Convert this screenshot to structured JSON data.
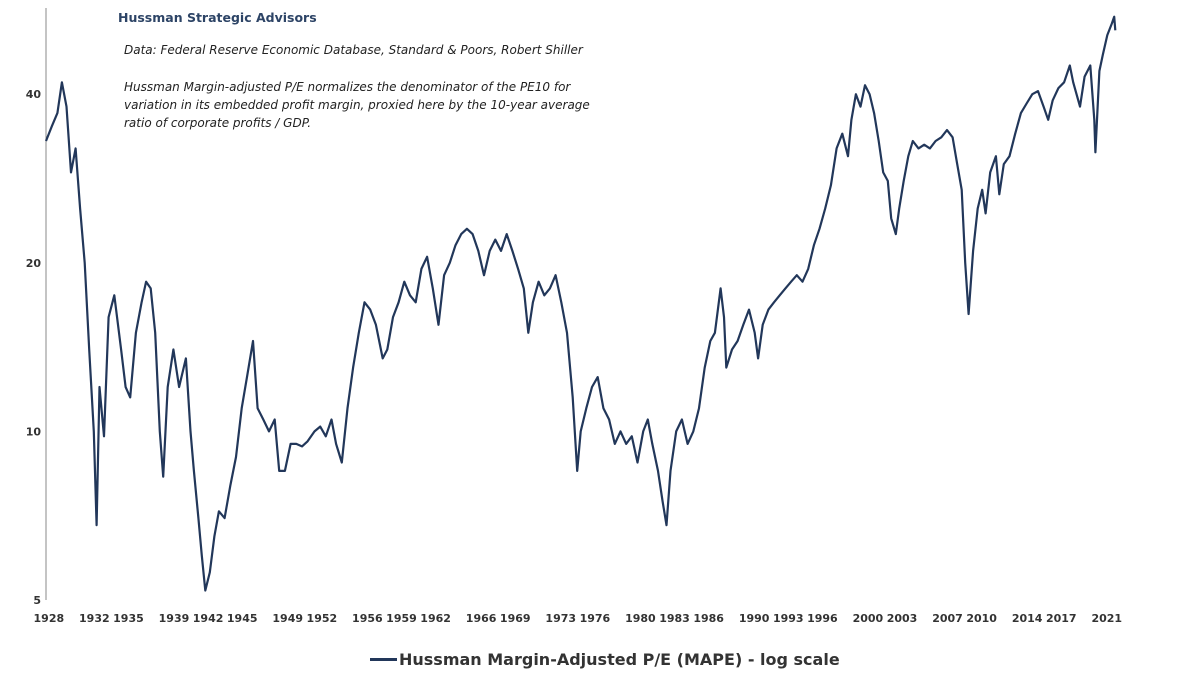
{
  "header": {
    "brand": "Hussman Strategic Advisors",
    "source_note": "Data: Federal Reserve Economic Database, Standard & Poors, Robert Shiller",
    "description": "Hussman Margin-adjusted P/E normalizes the denominator of the PE10 for variation in its embedded profit margin, proxied here by the 10-year average ratio of corporate profits / GDP."
  },
  "chart_data": {
    "type": "line",
    "title": "",
    "xlabel": "",
    "ylabel": "",
    "y_scale": "log",
    "ylim": [
      5,
      57
    ],
    "xlim": [
      1928,
      2022.5
    ],
    "grid": false,
    "legend_position": "bottom-center",
    "y_ticks": [
      5,
      10,
      20,
      40
    ],
    "x_ticks": [
      "1928",
      "1932",
      "1935",
      "1939",
      "1942",
      "1945",
      "1949",
      "1952",
      "1956",
      "1959",
      "1962",
      "1966",
      "1969",
      "1973",
      "1976",
      "1980",
      "1983",
      "1986",
      "1990",
      "1993",
      "1996",
      "2000",
      "2003",
      "2007",
      "2010",
      "2014",
      "2017",
      "2021"
    ],
    "series": [
      {
        "name": "Hussman Margin-Adjusted P/E (MAPE) - log scale",
        "color": "#22375a",
        "points": [
          [
            1928.0,
            33
          ],
          [
            1928.5,
            35
          ],
          [
            1929.0,
            37
          ],
          [
            1929.4,
            42
          ],
          [
            1929.8,
            38
          ],
          [
            1930.2,
            29
          ],
          [
            1930.6,
            32
          ],
          [
            1931.0,
            25
          ],
          [
            1931.4,
            20
          ],
          [
            1931.8,
            14
          ],
          [
            1932.2,
            10
          ],
          [
            1932.45,
            6.8
          ],
          [
            1932.7,
            12
          ],
          [
            1933.1,
            9.8
          ],
          [
            1933.5,
            16
          ],
          [
            1934.0,
            17.5
          ],
          [
            1934.6,
            14
          ],
          [
            1935.0,
            12
          ],
          [
            1935.4,
            11.5
          ],
          [
            1935.9,
            15
          ],
          [
            1936.4,
            17
          ],
          [
            1936.8,
            18.5
          ],
          [
            1937.2,
            18
          ],
          [
            1937.6,
            15
          ],
          [
            1938.0,
            10
          ],
          [
            1938.3,
            8.3
          ],
          [
            1938.7,
            12
          ],
          [
            1939.2,
            14
          ],
          [
            1939.7,
            12
          ],
          [
            1940.3,
            13.5
          ],
          [
            1940.7,
            10
          ],
          [
            1941.0,
            8.5
          ],
          [
            1941.4,
            7
          ],
          [
            1941.7,
            6
          ],
          [
            1942.0,
            5.2
          ],
          [
            1942.4,
            5.6
          ],
          [
            1942.8,
            6.5
          ],
          [
            1943.2,
            7.2
          ],
          [
            1943.7,
            7
          ],
          [
            1944.2,
            8
          ],
          [
            1944.7,
            9
          ],
          [
            1945.2,
            11
          ],
          [
            1945.7,
            12.6
          ],
          [
            1946.2,
            14.5
          ],
          [
            1946.6,
            11
          ],
          [
            1947.1,
            10.5
          ],
          [
            1947.6,
            10
          ],
          [
            1948.1,
            10.5
          ],
          [
            1948.5,
            8.5
          ],
          [
            1949.0,
            8.5
          ],
          [
            1949.5,
            9.5
          ],
          [
            1950.0,
            9.5
          ],
          [
            1950.5,
            9.4
          ],
          [
            1951.0,
            9.6
          ],
          [
            1951.6,
            10
          ],
          [
            1952.1,
            10.2
          ],
          [
            1952.6,
            9.8
          ],
          [
            1953.1,
            10.5
          ],
          [
            1953.5,
            9.5
          ],
          [
            1954.0,
            8.8
          ],
          [
            1954.5,
            11
          ],
          [
            1955.0,
            13
          ],
          [
            1955.5,
            15
          ],
          [
            1956.0,
            17
          ],
          [
            1956.5,
            16.5
          ],
          [
            1957.0,
            15.5
          ],
          [
            1957.6,
            13.5
          ],
          [
            1958.0,
            14
          ],
          [
            1958.5,
            16
          ],
          [
            1959.0,
            17
          ],
          [
            1959.5,
            18.5
          ],
          [
            1960.0,
            17.5
          ],
          [
            1960.5,
            17
          ],
          [
            1961.0,
            19.5
          ],
          [
            1961.5,
            20.5
          ],
          [
            1962.0,
            18
          ],
          [
            1962.5,
            15.5
          ],
          [
            1963.0,
            19
          ],
          [
            1963.5,
            20
          ],
          [
            1964.0,
            21.5
          ],
          [
            1964.5,
            22.5
          ],
          [
            1965.0,
            23
          ],
          [
            1965.5,
            22.5
          ],
          [
            1966.0,
            21
          ],
          [
            1966.5,
            19
          ],
          [
            1967.0,
            21
          ],
          [
            1967.5,
            22
          ],
          [
            1968.0,
            21
          ],
          [
            1968.5,
            22.5
          ],
          [
            1969.0,
            21
          ],
          [
            1969.5,
            19.5
          ],
          [
            1970.0,
            18
          ],
          [
            1970.4,
            15
          ],
          [
            1970.8,
            17
          ],
          [
            1971.3,
            18.5
          ],
          [
            1971.8,
            17.5
          ],
          [
            1972.3,
            18
          ],
          [
            1972.8,
            19
          ],
          [
            1973.3,
            17
          ],
          [
            1973.8,
            15
          ],
          [
            1974.3,
            11.5
          ],
          [
            1974.7,
            8.5
          ],
          [
            1975.0,
            10
          ],
          [
            1975.5,
            11
          ],
          [
            1976.0,
            12
          ],
          [
            1976.5,
            12.5
          ],
          [
            1977.0,
            11
          ],
          [
            1977.5,
            10.5
          ],
          [
            1978.0,
            9.5
          ],
          [
            1978.5,
            10
          ],
          [
            1979.0,
            9.5
          ],
          [
            1979.5,
            9.8
          ],
          [
            1980.0,
            8.8
          ],
          [
            1980.5,
            10
          ],
          [
            1980.9,
            10.5
          ],
          [
            1981.3,
            9.5
          ],
          [
            1981.8,
            8.5
          ],
          [
            1982.2,
            7.5
          ],
          [
            1982.55,
            6.8
          ],
          [
            1982.9,
            8.5
          ],
          [
            1983.4,
            10
          ],
          [
            1983.9,
            10.5
          ],
          [
            1984.4,
            9.5
          ],
          [
            1984.9,
            10
          ],
          [
            1985.4,
            11
          ],
          [
            1985.9,
            13
          ],
          [
            1986.4,
            14.5
          ],
          [
            1986.8,
            15
          ],
          [
            1987.3,
            18
          ],
          [
            1987.6,
            16
          ],
          [
            1987.8,
            13
          ],
          [
            1988.3,
            14
          ],
          [
            1988.8,
            14.5
          ],
          [
            1989.3,
            15.5
          ],
          [
            1989.8,
            16.5
          ],
          [
            1990.3,
            15
          ],
          [
            1990.6,
            13.5
          ],
          [
            1991.0,
            15.5
          ],
          [
            1991.5,
            16.5
          ],
          [
            1992.0,
            17
          ],
          [
            1992.5,
            17.5
          ],
          [
            1993.0,
            18
          ],
          [
            1993.5,
            18.5
          ],
          [
            1994.0,
            19
          ],
          [
            1994.5,
            18.5
          ],
          [
            1995.0,
            19.5
          ],
          [
            1995.5,
            21.5
          ],
          [
            1996.0,
            23
          ],
          [
            1996.5,
            25
          ],
          [
            1997.0,
            27.5
          ],
          [
            1997.5,
            32
          ],
          [
            1998.0,
            34
          ],
          [
            1998.5,
            31
          ],
          [
            1998.8,
            36
          ],
          [
            1999.2,
            40
          ],
          [
            1999.6,
            38
          ],
          [
            2000.0,
            41.5
          ],
          [
            2000.4,
            40
          ],
          [
            2000.8,
            37
          ],
          [
            2001.2,
            33
          ],
          [
            2001.6,
            29
          ],
          [
            2002.0,
            28
          ],
          [
            2002.3,
            24
          ],
          [
            2002.7,
            22.5
          ],
          [
            2003.0,
            25
          ],
          [
            2003.4,
            28
          ],
          [
            2003.8,
            31
          ],
          [
            2004.2,
            33
          ],
          [
            2004.7,
            32
          ],
          [
            2005.2,
            32.5
          ],
          [
            2005.7,
            32
          ],
          [
            2006.2,
            33
          ],
          [
            2006.7,
            33.5
          ],
          [
            2007.2,
            34.5
          ],
          [
            2007.7,
            33.5
          ],
          [
            2008.1,
            30
          ],
          [
            2008.5,
            27
          ],
          [
            2008.8,
            20
          ],
          [
            2009.1,
            16.2
          ],
          [
            2009.5,
            21
          ],
          [
            2009.9,
            25
          ],
          [
            2010.3,
            27
          ],
          [
            2010.6,
            24.5
          ],
          [
            2011.0,
            29
          ],
          [
            2011.5,
            31
          ],
          [
            2011.8,
            26.5
          ],
          [
            2012.2,
            30
          ],
          [
            2012.7,
            31
          ],
          [
            2013.2,
            34
          ],
          [
            2013.7,
            37
          ],
          [
            2014.2,
            38.5
          ],
          [
            2014.7,
            40
          ],
          [
            2015.2,
            40.5
          ],
          [
            2015.7,
            38
          ],
          [
            2016.1,
            36
          ],
          [
            2016.5,
            39
          ],
          [
            2017.0,
            41
          ],
          [
            2017.5,
            42
          ],
          [
            2018.0,
            45
          ],
          [
            2018.3,
            42
          ],
          [
            2018.9,
            38
          ],
          [
            2019.3,
            43
          ],
          [
            2019.8,
            45
          ],
          [
            2020.15,
            36
          ],
          [
            2020.25,
            31.5
          ],
          [
            2020.6,
            44
          ],
          [
            2020.9,
            47
          ],
          [
            2021.3,
            51
          ],
          [
            2021.7,
            53.5
          ],
          [
            2021.9,
            55
          ],
          [
            2022.0,
            52
          ]
        ]
      }
    ]
  }
}
